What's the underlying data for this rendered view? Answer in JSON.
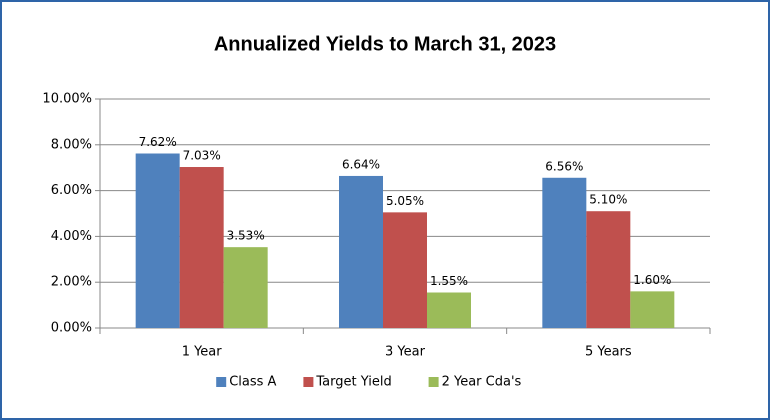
{
  "chart_data": {
    "type": "bar",
    "title": "Annualized Yields to March 31, 2023",
    "categories": [
      "1 Year",
      "3 Year",
      "5 Years"
    ],
    "series": [
      {
        "name": "Class A",
        "color": "#4f81bd",
        "values": [
          7.62,
          6.64,
          6.56
        ],
        "value_labels": [
          "7.62%",
          "6.64%",
          "6.56%"
        ]
      },
      {
        "name": "Target Yield",
        "color": "#c0504d",
        "values": [
          7.03,
          5.05,
          5.1
        ],
        "value_labels": [
          "7.03%",
          "5.05%",
          "5.10%"
        ]
      },
      {
        "name": "2 Year Cda's",
        "color": "#9bbb59",
        "values": [
          3.53,
          1.55,
          1.6
        ],
        "value_labels": [
          "3.53%",
          "1.55%",
          "1.60%"
        ]
      }
    ],
    "ylim": [
      0,
      10
    ],
    "yticks": [
      {
        "value": 0,
        "label": "0.00%"
      },
      {
        "value": 2,
        "label": "2.00%"
      },
      {
        "value": 4,
        "label": "4.00%"
      },
      {
        "value": 6,
        "label": "6.00%"
      },
      {
        "value": 8,
        "label": "8.00%"
      },
      {
        "value": 10,
        "label": "10.00%"
      }
    ],
    "grid": true,
    "legend": "bottom"
  }
}
